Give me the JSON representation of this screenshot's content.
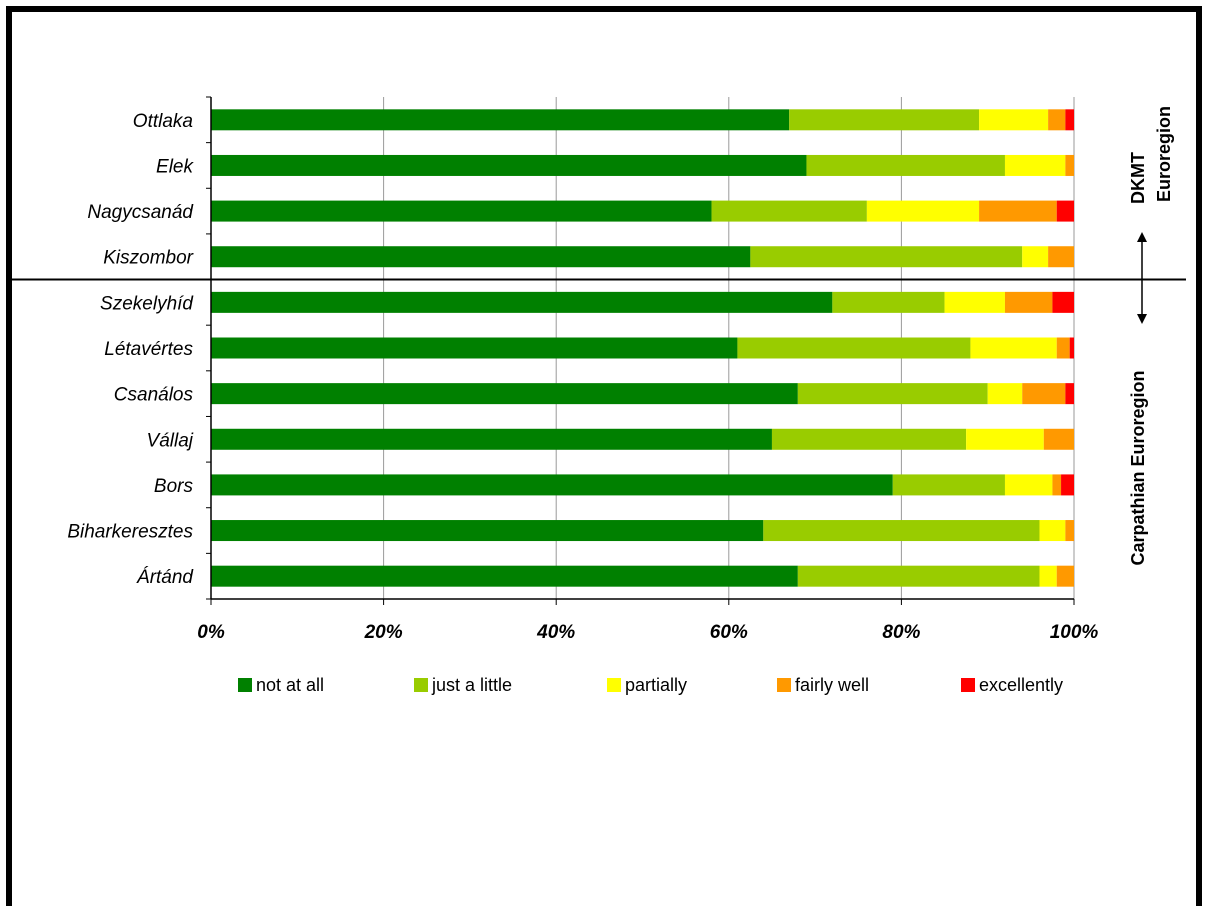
{
  "chart_data": {
    "type": "bar",
    "orientation": "horizontal",
    "stacked": true,
    "percent_stacked": true,
    "categories": [
      "Ottlaka",
      "Elek",
      "Nagycsanád",
      "Kiszombor",
      "Szekelyhíd",
      "Létavértes",
      "Csanálos",
      "Vállaj",
      "Bors",
      "Biharkeresztes",
      "Ártánd"
    ],
    "series": [
      {
        "name": "not at all",
        "color": "#008000",
        "values": [
          67,
          69,
          58,
          62.5,
          72,
          61,
          68,
          65,
          79,
          64,
          68
        ]
      },
      {
        "name": "just a little",
        "color": "#99CC00",
        "values": [
          22,
          23,
          18,
          31.5,
          13,
          27,
          22,
          22.5,
          13,
          32,
          28
        ]
      },
      {
        "name": "partially",
        "color": "#FFFF00",
        "values": [
          8,
          7,
          13,
          3,
          7,
          10,
          4,
          9,
          5.5,
          3,
          2
        ]
      },
      {
        "name": "fairly well",
        "color": "#FF9900",
        "values": [
          2,
          1,
          9,
          3,
          5.5,
          1.5,
          5,
          3.5,
          1,
          1,
          2
        ]
      },
      {
        "name": "excellently",
        "color": "#FF0000",
        "values": [
          1,
          0,
          2,
          0,
          2.5,
          0.5,
          1,
          0,
          1.5,
          0,
          0
        ]
      }
    ],
    "x_ticks": [
      "0%",
      "20%",
      "40%",
      "60%",
      "80%",
      "100%"
    ],
    "xlim": [
      0,
      100
    ],
    "grid": true,
    "legend_position": "bottom",
    "groups": [
      {
        "label_line1": "DKMT",
        "label_line2": "Euroregion",
        "categories": [
          "Ottlaka",
          "Elek",
          "Nagycsanád",
          "Kiszombor"
        ]
      },
      {
        "label_line1": "Carpathian Euroregion",
        "label_line2": "",
        "categories": [
          "Szekelyhíd",
          "Létavértes",
          "Csanálos",
          "Vállaj",
          "Bors",
          "Biharkeresztes",
          "Ártánd"
        ]
      }
    ]
  }
}
